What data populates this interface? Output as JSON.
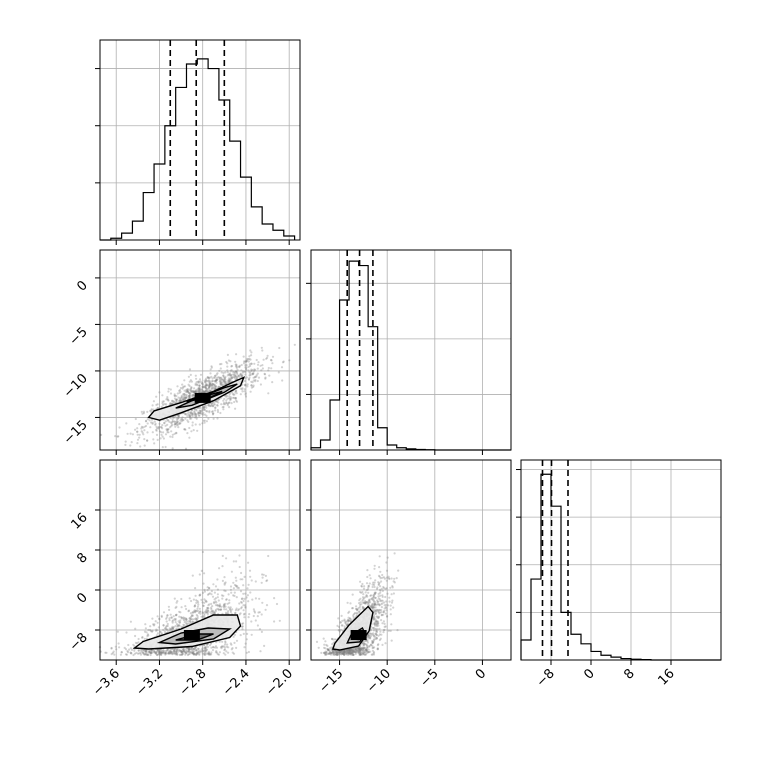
{
  "chart_data": {
    "type": "corner",
    "grid": true,
    "colors": {
      "line": "#000000",
      "grid": "#b0b0b0",
      "scatter": "#808080"
    },
    "panels": [
      {
        "id": "hist-param1",
        "type": "histogram",
        "xlim": [
          -3.75,
          -1.9
        ],
        "ylim": [
          0,
          3500
        ],
        "quantiles": [
          -3.1,
          -2.86,
          -2.6
        ],
        "bins": [
          -3.75,
          -3.65,
          -3.55,
          -3.45,
          -3.35,
          -3.25,
          -3.15,
          -3.05,
          -2.95,
          -2.85,
          -2.75,
          -2.65,
          -2.55,
          -2.45,
          -2.35,
          -2.25,
          -2.15,
          -2.05,
          -1.95
        ],
        "counts": [
          0,
          30,
          120,
          330,
          830,
          1330,
          2000,
          2670,
          3080,
          3170,
          3000,
          2450,
          1730,
          1100,
          580,
          280,
          170,
          70
        ]
      },
      {
        "id": "hist-param2",
        "type": "histogram",
        "xlim": [
          -18,
          3
        ],
        "ylim": [
          0,
          3600
        ],
        "quantiles": [
          -14.2,
          -12.9,
          -11.5
        ],
        "bins": [
          -18,
          -17,
          -16,
          -15,
          -14,
          -13,
          -12,
          -11,
          -10,
          -9,
          -8,
          -7,
          -6,
          -5,
          -4,
          -3,
          -2,
          -1,
          0,
          1,
          2,
          3
        ],
        "counts": [
          40,
          180,
          900,
          2700,
          3400,
          3320,
          2220,
          400,
          90,
          40,
          20,
          10,
          5,
          0,
          0,
          0,
          0,
          0,
          0,
          0,
          0
        ]
      },
      {
        "id": "hist-param3",
        "type": "histogram",
        "xlim": [
          -14,
          26
        ],
        "ylim": [
          0,
          4200
        ],
        "quantiles": [
          -9.7,
          -7.9,
          -4.6
        ],
        "bins": [
          -14,
          -12,
          -10,
          -8,
          -6,
          -4,
          -2,
          0,
          2,
          4,
          6,
          8,
          10,
          12,
          14,
          16,
          18,
          20,
          22,
          24,
          26
        ],
        "counts": [
          420,
          1700,
          3900,
          3230,
          1000,
          540,
          340,
          180,
          100,
          60,
          30,
          15,
          8,
          0,
          0,
          0,
          0,
          0,
          0,
          0
        ]
      },
      {
        "id": "scatter-param1-param2",
        "type": "2d-density",
        "xlim": [
          -3.75,
          -1.9
        ],
        "ylim": [
          -18.5,
          3
        ],
        "x_ticks": [
          -3.6,
          -3.2,
          -2.8,
          -2.4,
          -2.0
        ],
        "y_ticks": [
          0,
          -5,
          -10,
          -15
        ],
        "y_tick_labels": [
          "0",
          "−5",
          "−10",
          "−15"
        ],
        "center": [
          -2.8,
          -12.9
        ],
        "correlation": 0.8,
        "sd": [
          0.27,
          1.9
        ],
        "contours": [
          {
            "level": 1,
            "points": [
              [
                -3.3,
                -15.0
              ],
              [
                -3.25,
                -14.3
              ],
              [
                -3.0,
                -13.4
              ],
              [
                -2.7,
                -12.2
              ],
              [
                -2.5,
                -11.1
              ],
              [
                -2.42,
                -10.7
              ],
              [
                -2.45,
                -11.6
              ],
              [
                -2.7,
                -13.2
              ],
              [
                -3.0,
                -14.5
              ],
              [
                -3.2,
                -15.3
              ],
              [
                -3.3,
                -15.0
              ]
            ]
          },
          {
            "level": 2,
            "points": [
              [
                -3.05,
                -14.0
              ],
              [
                -2.9,
                -13.2
              ],
              [
                -2.6,
                -11.8
              ],
              [
                -2.48,
                -11.4
              ],
              [
                -2.6,
                -12.3
              ],
              [
                -2.9,
                -13.7
              ],
              [
                -3.05,
                -14.0
              ]
            ]
          },
          {
            "level": 3,
            "points": [
              [
                -2.95,
                -13.3
              ],
              [
                -2.75,
                -12.6
              ],
              [
                -2.62,
                -12.2
              ],
              [
                -2.72,
                -12.8
              ],
              [
                -2.95,
                -13.3
              ]
            ]
          }
        ]
      },
      {
        "id": "scatter-param1-param3",
        "type": "2d-density",
        "xlim": [
          -3.75,
          -1.9
        ],
        "ylim": [
          -14,
          26
        ],
        "x_ticks": [
          -3.6,
          -3.2,
          -2.8,
          -2.4,
          -2.0
        ],
        "x_tick_labels": [
          "−3.6",
          "−3.2",
          "−2.8",
          "−2.4",
          "−2.0"
        ],
        "y_ticks": [
          16,
          8,
          0,
          -8
        ],
        "y_tick_labels": [
          "16",
          "8",
          "0",
          "−8"
        ],
        "center": [
          -2.9,
          -9.0
        ],
        "correlation": 0.55,
        "sd": [
          0.28,
          4.0
        ],
        "contours": [
          {
            "level": 1,
            "points": [
              [
                -3.43,
                -11.6
              ],
              [
                -3.35,
                -10.3
              ],
              [
                -3.0,
                -7.8
              ],
              [
                -2.7,
                -5.0
              ],
              [
                -2.48,
                -5.0
              ],
              [
                -2.45,
                -7.2
              ],
              [
                -2.55,
                -9.5
              ],
              [
                -2.9,
                -11.3
              ],
              [
                -3.3,
                -11.8
              ],
              [
                -3.43,
                -11.6
              ]
            ]
          },
          {
            "level": 2,
            "points": [
              [
                -3.2,
                -10.5
              ],
              [
                -3.0,
                -8.6
              ],
              [
                -2.75,
                -7.6
              ],
              [
                -2.55,
                -7.8
              ],
              [
                -2.7,
                -9.8
              ],
              [
                -3.05,
                -10.8
              ],
              [
                -3.2,
                -10.5
              ]
            ]
          },
          {
            "level": 3,
            "points": [
              [
                -3.05,
                -10.0
              ],
              [
                -2.85,
                -8.8
              ],
              [
                -2.7,
                -8.8
              ],
              [
                -2.85,
                -10.0
              ],
              [
                -3.05,
                -10.0
              ]
            ]
          }
        ]
      },
      {
        "id": "scatter-param2-param3",
        "type": "2d-density",
        "xlim": [
          -18,
          3
        ],
        "ylim": [
          -14,
          26
        ],
        "x_ticks": [
          -15,
          -10,
          -5,
          0
        ],
        "x_tick_labels": [
          "−15",
          "−10",
          "−5",
          "0"
        ],
        "y_ticks": [
          16,
          8,
          0,
          -8
        ],
        "center": [
          -13.0,
          -9.0
        ],
        "correlation": 0.65,
        "sd": [
          1.5,
          4.0
        ],
        "contours": [
          {
            "level": 1,
            "points": [
              [
                -15.7,
                -11.8
              ],
              [
                -15.5,
                -10.7
              ],
              [
                -14.0,
                -7.0
              ],
              [
                -12.0,
                -3.3
              ],
              [
                -11.5,
                -4.5
              ],
              [
                -11.9,
                -8.2
              ],
              [
                -13.0,
                -11.2
              ],
              [
                -15.0,
                -12.0
              ],
              [
                -15.7,
                -11.8
              ]
            ]
          },
          {
            "level": 2,
            "points": [
              [
                -14.2,
                -10.6
              ],
              [
                -13.8,
                -9.0
              ],
              [
                -12.6,
                -7.6
              ],
              [
                -12.3,
                -8.8
              ],
              [
                -12.9,
                -10.4
              ],
              [
                -14.2,
                -10.6
              ]
            ]
          },
          {
            "level": 3,
            "points": [
              [
                -13.6,
                -9.8
              ],
              [
                -13.2,
                -9.0
              ],
              [
                -12.8,
                -9.1
              ],
              [
                -13.0,
                -9.9
              ],
              [
                -13.6,
                -9.8
              ]
            ]
          }
        ]
      }
    ],
    "x_axis_ticks": {
      "param1": [
        "−3.6",
        "−3.2",
        "−2.8",
        "−2.4",
        "−2.0"
      ],
      "param2": [
        "−15",
        "−10",
        "−5",
        "0"
      ],
      "param3": [
        "−8",
        "0",
        "8",
        "16"
      ]
    },
    "y_axis_ticks": {
      "param2": [
        "0",
        "−5",
        "−10",
        "−15"
      ],
      "param3": [
        "16",
        "8",
        "0",
        "−8"
      ]
    },
    "hist3_x_ticks": [
      -8,
      0,
      8,
      16
    ]
  }
}
